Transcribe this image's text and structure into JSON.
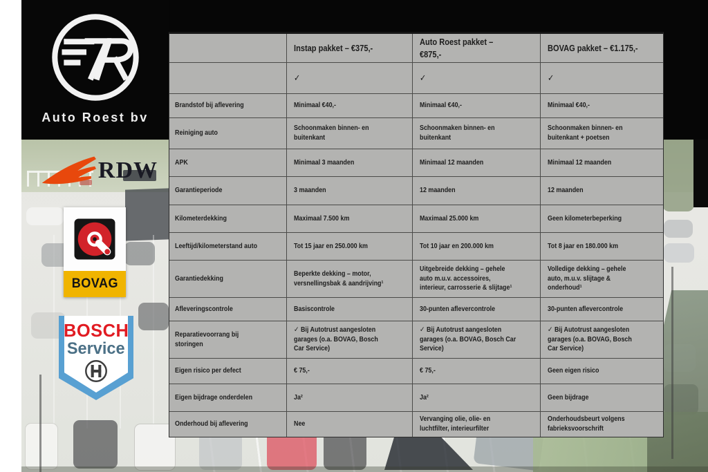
{
  "branding": {
    "dealer_name": "Auto Roest bv",
    "monogram": "7R",
    "rdw": {
      "label": "RDW"
    },
    "bovag": {
      "label": "BOVAG"
    },
    "bosch": {
      "line1": "BOSCH",
      "line2": "Service"
    }
  },
  "colors": {
    "rdw-orange": "#e8480c",
    "bovag-yellow": "#f0b400",
    "bovag-red": "#d2232a",
    "bosch-red": "#e11b22",
    "bosch-blue": "#58a0d2",
    "bosch-service-blue": "#4b7086",
    "table-gray": "#b3b3b1",
    "table-border": "#474747",
    "text-dark": "#1d1d1d"
  },
  "table": {
    "columns": [
      "",
      "Instap pakket – €375,-",
      "Auto Roest pakket – €875,-",
      "BOVAG pakket – €1.175,-"
    ],
    "rows": [
      {
        "label": "",
        "cells": [
          "✓",
          "✓",
          "✓"
        ]
      },
      {
        "label": "Brandstof bij aflevering",
        "cells": [
          "Minimaal €40,-",
          "Minimaal €40,-",
          "Minimaal €40,-"
        ]
      },
      {
        "label": "Reiniging auto",
        "cells": [
          "Schoonmaken binnen- en buitenkant",
          "Schoonmaken binnen- en buitenkant",
          "Schoonmaken binnen- en buitenkant + poetsen"
        ]
      },
      {
        "label": "APK",
        "cells": [
          "Minimaal 3 maanden",
          "Minimaal 12 maanden",
          "Minimaal 12 maanden"
        ]
      },
      {
        "label": "Garantieperiode",
        "cells": [
          "3 maanden",
          "12 maanden",
          "12 maanden"
        ]
      },
      {
        "label": "Kilometerdekking",
        "cells": [
          "Maximaal 7.500 km",
          "Maximaal 25.000 km",
          "Geen kilometerbeperking"
        ]
      },
      {
        "label": "Leeftijd/kilometerstand auto",
        "cells": [
          "Tot 15 jaar en 250.000 km",
          "Tot 10 jaar en 200.000 km",
          "Tot 8 jaar en 180.000 km"
        ]
      },
      {
        "label": "Garantiedekking",
        "cells": [
          "Beperkte dekking – motor, versnellingsbak & aandrijving¹",
          "Uitgebreide dekking – gehele auto m.u.v. accessoires, interieur, carrosserie & slijtage¹",
          "Volledige dekking – gehele auto, m.u.v. slijtage & onderhoud¹"
        ]
      },
      {
        "label": "Afleveringscontrole",
        "cells": [
          "Basiscontrole",
          "30-punten aflevercontrole",
          "30-punten aflevercontrole"
        ]
      },
      {
        "label": "Reparatievoorrang bij storingen",
        "cells": [
          "✓ Bij Autotrust aangesloten garages (o.a. BOVAG, Bosch Car Service)",
          "✓ Bij Autotrust aangesloten garages (o.a. BOVAG, Bosch Car Service)",
          "✓ Bij Autotrust aangesloten garages (o.a. BOVAG, Bosch Car Service)"
        ]
      },
      {
        "label": "Eigen risico per defect",
        "cells": [
          "€ 75,-",
          "€ 75,-",
          "Geen eigen risico"
        ]
      },
      {
        "label": "Eigen bijdrage onderdelen",
        "cells": [
          "Ja²",
          "Ja²",
          "Geen bijdrage"
        ]
      },
      {
        "label": "Onderhoud bij aflevering",
        "cells": [
          "Nee",
          "Vervanging olie, olie- en luchtfilter, interieurfilter",
          "Onderhoudsbeurt volgens fabrieksvoorschrift"
        ]
      }
    ]
  }
}
